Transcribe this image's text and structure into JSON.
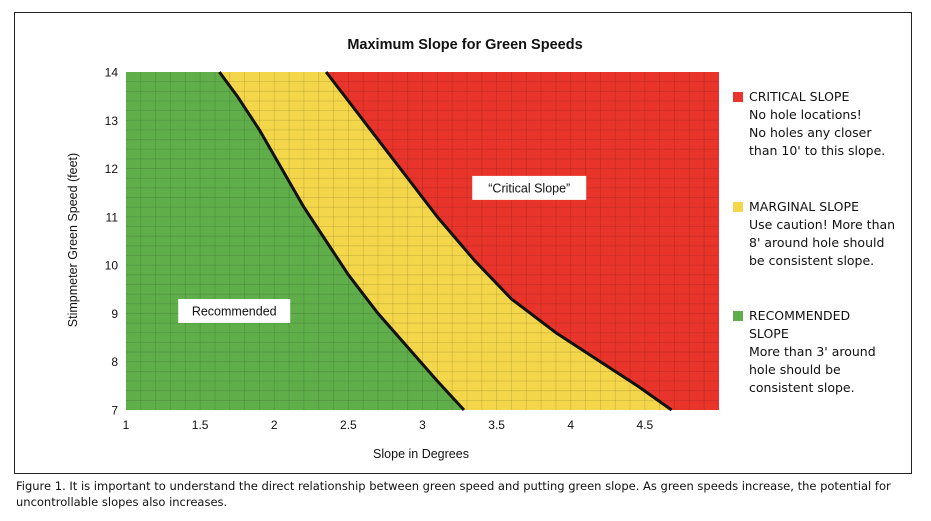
{
  "chart_data": {
    "type": "area",
    "title": "Maximum Slope for Green Speeds",
    "xlabel": "Slope in Degrees",
    "ylabel": "Stimpmeter Green Speed (feet)",
    "xlim": [
      1,
      5
    ],
    "ylim": [
      7,
      14
    ],
    "x_ticks": [
      1,
      1.5,
      2,
      2.5,
      3,
      3.5,
      4,
      4.5
    ],
    "x_tick_labels": [
      "1",
      "1.5",
      "2",
      "2.5",
      "3",
      "3.5",
      "4",
      "4.5"
    ],
    "y_ticks": [
      7,
      8,
      9,
      10,
      11,
      12,
      13,
      14
    ],
    "y_tick_labels": [
      "7",
      "8",
      "9",
      "10",
      "11",
      "12",
      "13",
      "14"
    ],
    "grid": true,
    "boundaries": [
      {
        "name": "recommended-marginal-boundary",
        "points": [
          [
            1.63,
            14
          ],
          [
            1.75,
            13.5
          ],
          [
            1.9,
            12.8
          ],
          [
            2.05,
            12
          ],
          [
            2.2,
            11.2
          ],
          [
            2.35,
            10.5
          ],
          [
            2.5,
            9.8
          ],
          [
            2.7,
            9.0
          ],
          [
            2.9,
            8.3
          ],
          [
            3.1,
            7.6
          ],
          [
            3.28,
            7
          ]
        ]
      },
      {
        "name": "marginal-critical-boundary",
        "points": [
          [
            2.35,
            14
          ],
          [
            2.5,
            13.4
          ],
          [
            2.7,
            12.6
          ],
          [
            2.9,
            11.8
          ],
          [
            3.1,
            11.0
          ],
          [
            3.35,
            10.1
          ],
          [
            3.6,
            9.3
          ],
          [
            3.9,
            8.6
          ],
          [
            4.2,
            8.0
          ],
          [
            4.45,
            7.5
          ],
          [
            4.68,
            7
          ]
        ]
      }
    ],
    "regions": [
      {
        "name": "Recommended",
        "label": "Recommended",
        "color": "#5fae4a"
      },
      {
        "name": "Marginal",
        "color": "#f3d64a"
      },
      {
        "name": "Critical",
        "label": "“Critical Slope”",
        "color": "#e8342a"
      }
    ],
    "legend_placement": "right",
    "legend": [
      {
        "color": "#e8342a",
        "title": "CRITICAL SLOPE",
        "notes": [
          "No hole locations!",
          "No holes any closer",
          "than 10' to this slope."
        ]
      },
      {
        "color": "#f3d64a",
        "title": "MARGINAL SLOPE",
        "notes": [
          "Use caution! More than",
          "8' around hole should",
          "be consistent slope."
        ]
      },
      {
        "color": "#5fae4a",
        "title": "RECOMMENDED",
        "title2": "SLOPE",
        "notes": [
          "More than 3' around",
          "hole should be",
          "consistent slope."
        ]
      }
    ]
  },
  "caption": "Figure 1. It is important to understand the direct relationship between green speed and putting green slope. As green speeds increase, the potential for uncontrollable slopes also increases."
}
